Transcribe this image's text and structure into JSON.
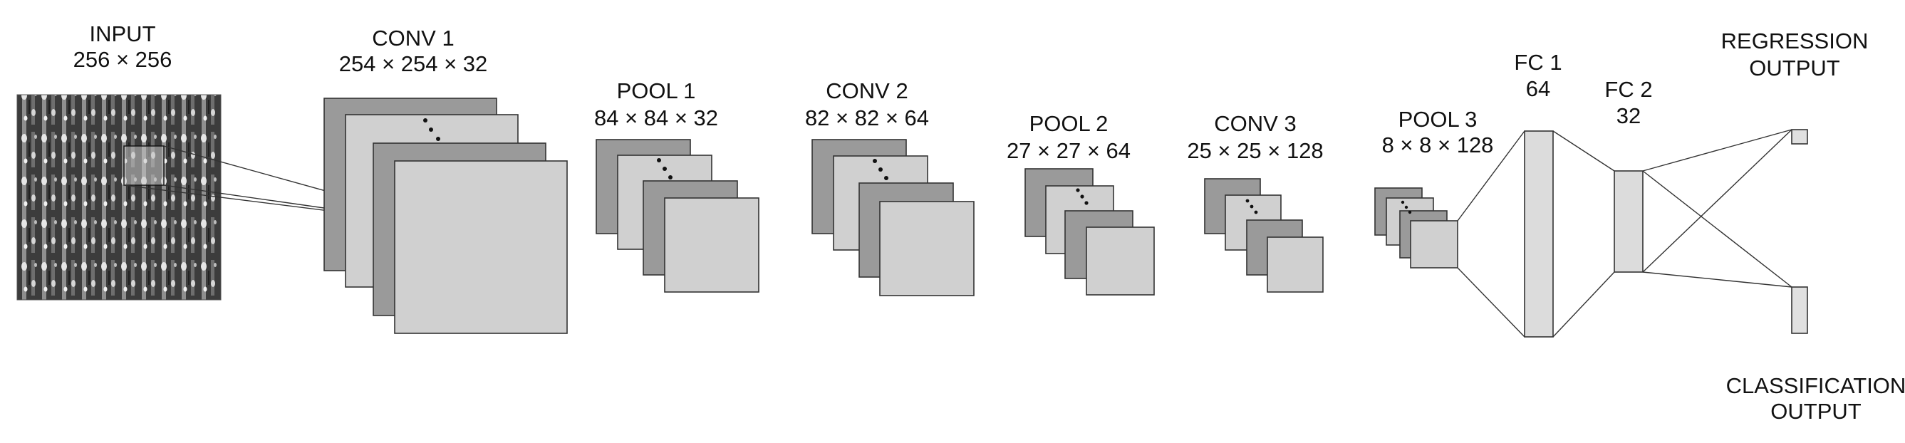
{
  "layers": {
    "input": {
      "name": "INPUT",
      "dims": "256 × 256"
    },
    "conv1": {
      "name": "CONV 1",
      "dims": "254 × 254 × 32"
    },
    "pool1": {
      "name": "POOL 1",
      "dims": "84 × 84 × 32"
    },
    "conv2": {
      "name": "CONV 2",
      "dims": "82 × 82 × 64"
    },
    "pool2": {
      "name": "POOL 2",
      "dims": "27 × 27 × 64"
    },
    "conv3": {
      "name": "CONV 3",
      "dims": "25 × 25 × 128"
    },
    "pool3": {
      "name": "POOL 3",
      "dims": "8 × 8 × 128"
    },
    "fc1": {
      "name": "FC 1",
      "dims": "64"
    },
    "fc2": {
      "name": "FC 2",
      "dims": "32"
    }
  },
  "outputs": {
    "regression": {
      "line1": "REGRESSION",
      "line2": "OUTPUT"
    },
    "classification": {
      "line1": "CLASSIFICATION",
      "line2": "OUTPUT"
    }
  },
  "colors": {
    "dark_fill": "#9a9a9a",
    "light_fill": "#d0d0d0",
    "fc_fill": "#dcdcdc",
    "stroke": "#333333"
  }
}
